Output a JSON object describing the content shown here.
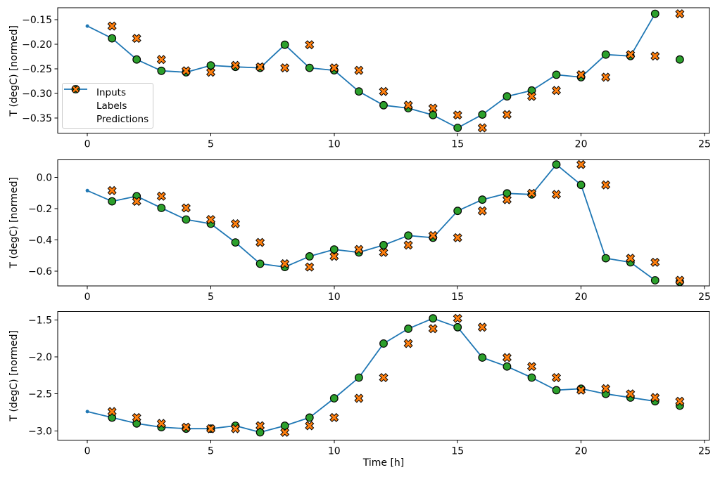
{
  "figure": {
    "xlabel": "Time [h]",
    "xticks": [
      {
        "v": 0,
        "label": "0"
      },
      {
        "v": 5,
        "label": "5"
      },
      {
        "v": 10,
        "label": "10"
      },
      {
        "v": 15,
        "label": "15"
      },
      {
        "v": 20,
        "label": "20"
      },
      {
        "v": 25,
        "label": "25"
      }
    ],
    "legend": {
      "entries": [
        {
          "key": "inputs",
          "label": "Inputs"
        },
        {
          "key": "labels",
          "label": "Labels"
        },
        {
          "key": "predictions",
          "label": "Predictions"
        }
      ],
      "position": "upper-left-of-first-subplot"
    },
    "colors": {
      "inputs": "#1f77b4",
      "labels": "#2ca02c",
      "predictions": "#ff7f0e",
      "marker_edge": "#000000",
      "spine": "#000000",
      "legend_border": "#cccccc"
    }
  },
  "chart_data": [
    {
      "type": "line+scatter",
      "ylabel": "T (degC) [normed]",
      "xlim": [
        -1.2,
        25.2
      ],
      "ylim": [
        -0.3807,
        -0.1257
      ],
      "grid": false,
      "yticks": [
        {
          "v": -0.15,
          "label": "−0.15"
        },
        {
          "v": -0.2,
          "label": "−0.20"
        },
        {
          "v": -0.25,
          "label": "−0.25"
        },
        {
          "v": -0.3,
          "label": "−0.30"
        },
        {
          "v": -0.35,
          "label": "−0.35"
        }
      ],
      "series": {
        "inputs": {
          "x": [
            0,
            1,
            2,
            3,
            4,
            5,
            6,
            7,
            8,
            9,
            10,
            11,
            12,
            13,
            14,
            15,
            16,
            17,
            18,
            19,
            20,
            21,
            22,
            23
          ],
          "y": [
            -0.163,
            -0.188,
            -0.231,
            -0.254,
            -0.257,
            -0.243,
            -0.246,
            -0.248,
            -0.201,
            -0.248,
            -0.253,
            -0.296,
            -0.324,
            -0.33,
            -0.344,
            -0.37,
            -0.343,
            -0.306,
            -0.294,
            -0.262,
            -0.267,
            -0.221,
            -0.224,
            -0.138
          ]
        },
        "labels": {
          "x": [
            1,
            2,
            3,
            4,
            5,
            6,
            7,
            8,
            9,
            10,
            11,
            12,
            13,
            14,
            15,
            16,
            17,
            18,
            19,
            20,
            21,
            22,
            23,
            24
          ],
          "y": [
            -0.188,
            -0.231,
            -0.254,
            -0.257,
            -0.243,
            -0.246,
            -0.248,
            -0.201,
            -0.248,
            -0.253,
            -0.296,
            -0.324,
            -0.33,
            -0.344,
            -0.37,
            -0.343,
            -0.306,
            -0.294,
            -0.262,
            -0.267,
            -0.221,
            -0.224,
            -0.138,
            -0.231
          ]
        },
        "predictions": {
          "x": [
            1,
            2,
            3,
            4,
            5,
            6,
            7,
            8,
            9,
            10,
            11,
            12,
            13,
            14,
            15,
            16,
            17,
            18,
            19,
            20,
            21,
            22,
            23,
            24
          ],
          "y": [
            -0.163,
            -0.188,
            -0.231,
            -0.254,
            -0.257,
            -0.243,
            -0.246,
            -0.248,
            -0.201,
            -0.248,
            -0.253,
            -0.296,
            -0.324,
            -0.33,
            -0.344,
            -0.37,
            -0.343,
            -0.306,
            -0.294,
            -0.262,
            -0.267,
            -0.221,
            -0.224,
            -0.138
          ]
        }
      }
    },
    {
      "type": "line+scatter",
      "ylabel": "T (degC) [normed]",
      "xlim": [
        -1.2,
        25.2
      ],
      "ylim": [
        -0.6937,
        0.1112
      ],
      "grid": false,
      "yticks": [
        {
          "v": 0.0,
          "label": "0.0"
        },
        {
          "v": -0.2,
          "label": "−0.2"
        },
        {
          "v": -0.4,
          "label": "−0.4"
        },
        {
          "v": -0.6,
          "label": "−0.6"
        }
      ],
      "series": {
        "inputs": {
          "x": [
            0,
            1,
            2,
            3,
            4,
            5,
            6,
            7,
            8,
            9,
            10,
            11,
            12,
            13,
            14,
            15,
            16,
            17,
            18,
            19,
            20,
            21,
            22,
            23
          ],
          "y": [
            -0.085,
            -0.154,
            -0.121,
            -0.196,
            -0.27,
            -0.297,
            -0.416,
            -0.552,
            -0.573,
            -0.505,
            -0.461,
            -0.48,
            -0.433,
            -0.372,
            -0.386,
            -0.215,
            -0.143,
            -0.103,
            -0.11,
            0.081,
            -0.049,
            -0.517,
            -0.543,
            -0.658
          ]
        },
        "labels": {
          "x": [
            1,
            2,
            3,
            4,
            5,
            6,
            7,
            8,
            9,
            10,
            11,
            12,
            13,
            14,
            15,
            16,
            17,
            18,
            19,
            20,
            21,
            22,
            23,
            24
          ],
          "y": [
            -0.154,
            -0.121,
            -0.196,
            -0.27,
            -0.297,
            -0.416,
            -0.552,
            -0.573,
            -0.505,
            -0.461,
            -0.48,
            -0.433,
            -0.372,
            -0.386,
            -0.215,
            -0.143,
            -0.103,
            -0.11,
            0.081,
            -0.049,
            -0.517,
            -0.543,
            -0.658,
            -0.668
          ]
        },
        "predictions": {
          "x": [
            1,
            2,
            3,
            4,
            5,
            6,
            7,
            8,
            9,
            10,
            11,
            12,
            13,
            14,
            15,
            16,
            17,
            18,
            19,
            20,
            21,
            22,
            23,
            24
          ],
          "y": [
            -0.085,
            -0.154,
            -0.121,
            -0.196,
            -0.27,
            -0.297,
            -0.416,
            -0.552,
            -0.573,
            -0.505,
            -0.461,
            -0.48,
            -0.433,
            -0.372,
            -0.386,
            -0.215,
            -0.143,
            -0.103,
            -0.11,
            0.081,
            -0.049,
            -0.517,
            -0.543,
            -0.658
          ]
        }
      }
    },
    {
      "type": "line+scatter",
      "ylabel": "T (degC) [normed]",
      "xlim": [
        -1.2,
        25.2
      ],
      "ylim": [
        -3.125,
        -1.388
      ],
      "grid": false,
      "yticks": [
        {
          "v": -1.5,
          "label": "−1.5"
        },
        {
          "v": -2.0,
          "label": "−2.0"
        },
        {
          "v": -2.5,
          "label": "−2.5"
        },
        {
          "v": -3.0,
          "label": "−3.0"
        }
      ],
      "series": {
        "inputs": {
          "x": [
            0,
            1,
            2,
            3,
            4,
            5,
            6,
            7,
            8,
            9,
            10,
            11,
            12,
            13,
            14,
            15,
            16,
            17,
            18,
            19,
            20,
            21,
            22,
            23
          ],
          "y": [
            -2.74,
            -2.82,
            -2.9,
            -2.95,
            -2.97,
            -2.97,
            -2.93,
            -3.02,
            -2.93,
            -2.82,
            -2.56,
            -2.28,
            -1.82,
            -1.62,
            -1.48,
            -1.6,
            -2.01,
            -2.13,
            -2.28,
            -2.45,
            -2.43,
            -2.5,
            -2.55,
            -2.6
          ]
        },
        "labels": {
          "x": [
            1,
            2,
            3,
            4,
            5,
            6,
            7,
            8,
            9,
            10,
            11,
            12,
            13,
            14,
            15,
            16,
            17,
            18,
            19,
            20,
            21,
            22,
            23,
            24
          ],
          "y": [
            -2.82,
            -2.9,
            -2.95,
            -2.97,
            -2.97,
            -2.93,
            -3.02,
            -2.93,
            -2.82,
            -2.56,
            -2.28,
            -1.82,
            -1.62,
            -1.48,
            -1.6,
            -2.01,
            -2.13,
            -2.28,
            -2.45,
            -2.43,
            -2.5,
            -2.55,
            -2.6,
            -2.66
          ]
        },
        "predictions": {
          "x": [
            1,
            2,
            3,
            4,
            5,
            6,
            7,
            8,
            9,
            10,
            11,
            12,
            13,
            14,
            15,
            16,
            17,
            18,
            19,
            20,
            21,
            22,
            23,
            24
          ],
          "y": [
            -2.74,
            -2.82,
            -2.9,
            -2.95,
            -2.97,
            -2.97,
            -2.93,
            -3.02,
            -2.93,
            -2.82,
            -2.56,
            -2.28,
            -1.82,
            -1.62,
            -1.48,
            -1.6,
            -2.01,
            -2.13,
            -2.28,
            -2.45,
            -2.43,
            -2.5,
            -2.55,
            -2.6
          ]
        }
      }
    }
  ]
}
